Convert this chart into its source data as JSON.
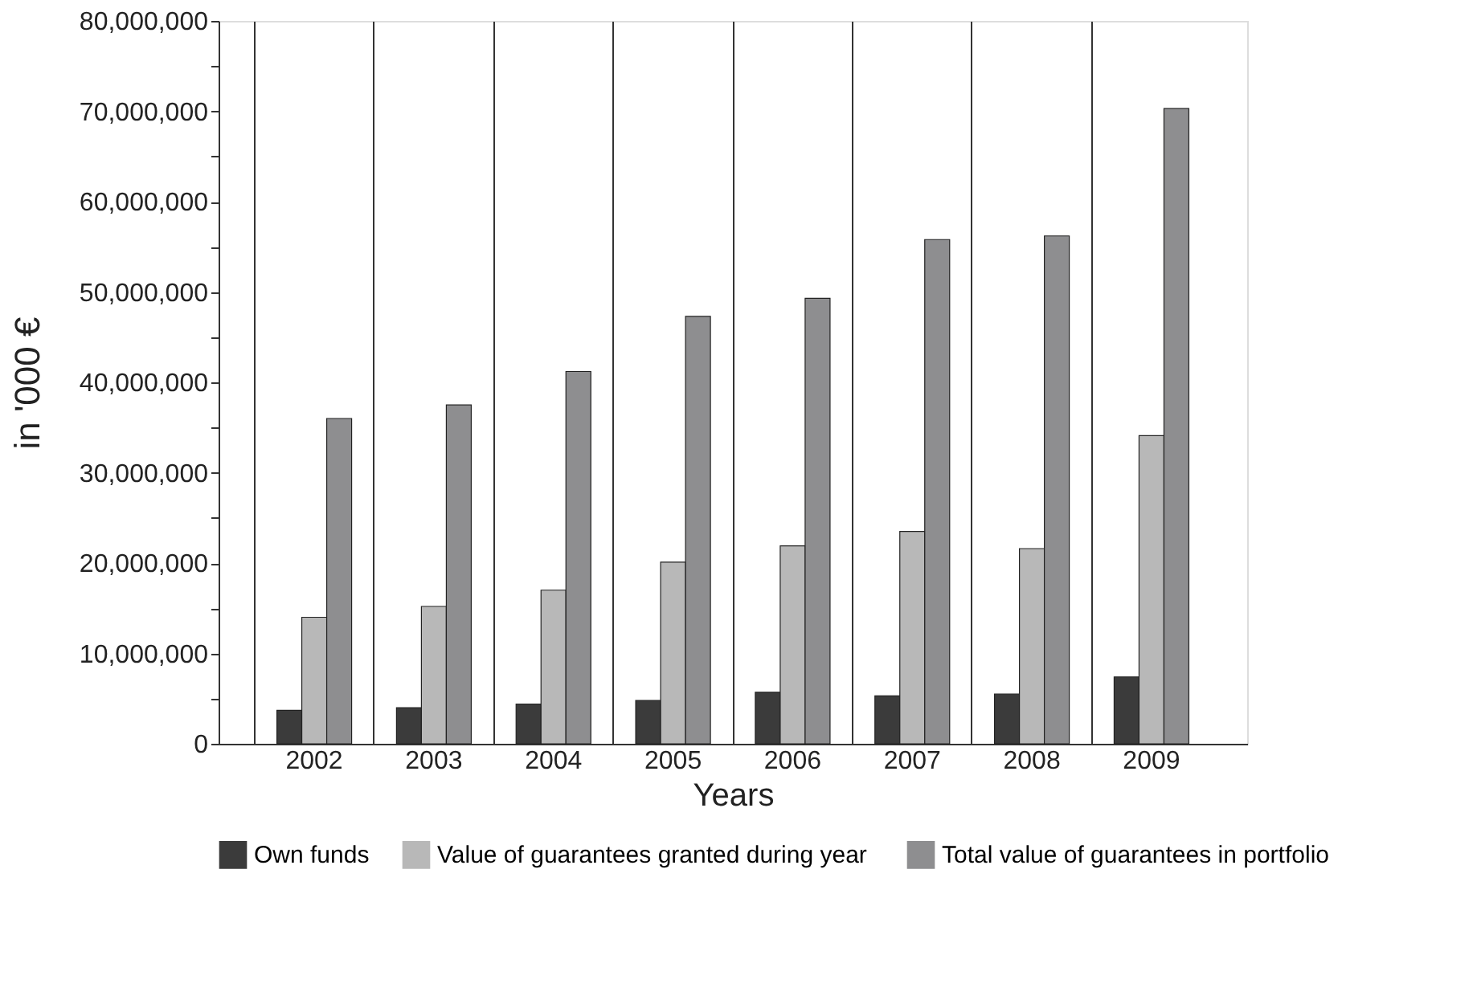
{
  "chart_data": {
    "type": "bar",
    "xlabel": "Years",
    "ylabel": "in '000 €",
    "categories": [
      "2002",
      "2003",
      "2004",
      "2005",
      "2006",
      "2007",
      "2008",
      "2009"
    ],
    "series": [
      {
        "name": "Own funds",
        "color": "#3b3b3b",
        "values": [
          3700000,
          4000000,
          4400000,
          4800000,
          5700000,
          5300000,
          5500000,
          7400000
        ]
      },
      {
        "name": "Value  of guarantees granted during year",
        "color": "#b8b8b8",
        "values": [
          14000000,
          15200000,
          17000000,
          20100000,
          21900000,
          23500000,
          21600000,
          34100000
        ]
      },
      {
        "name": "Total value of guarantees in portfolio",
        "color": "#8e8e90",
        "values": [
          36000000,
          37500000,
          41200000,
          47300000,
          49300000,
          55800000,
          56200000,
          70300000
        ]
      }
    ],
    "ylim": [
      0,
      80000000
    ],
    "yticks": [
      0,
      {
        "value": 5000000,
        "label": null
      },
      {
        "value": 10000000,
        "label": "10,000,000"
      },
      {
        "value": 15000000,
        "label": null
      },
      {
        "value": 20000000,
        "label": "20,000,000"
      },
      {
        "value": 25000000,
        "label": null
      },
      {
        "value": 30000000,
        "label": "30,000,000"
      },
      {
        "value": 35000000,
        "label": null
      },
      {
        "value": 40000000,
        "label": "40,000,000"
      },
      {
        "value": 45000000,
        "label": null
      },
      {
        "value": 50000000,
        "label": "50,000,000"
      },
      {
        "value": 55000000,
        "label": null
      },
      {
        "value": 60000000,
        "label": "60,000,000"
      },
      {
        "value": 65000000,
        "label": null
      },
      {
        "value": 70000000,
        "label": "70,000,000"
      },
      {
        "value": 75000000,
        "label": null
      },
      {
        "value": 80000000,
        "label": "80,000,000"
      }
    ],
    "grid": "x",
    "legend": "bottom"
  }
}
